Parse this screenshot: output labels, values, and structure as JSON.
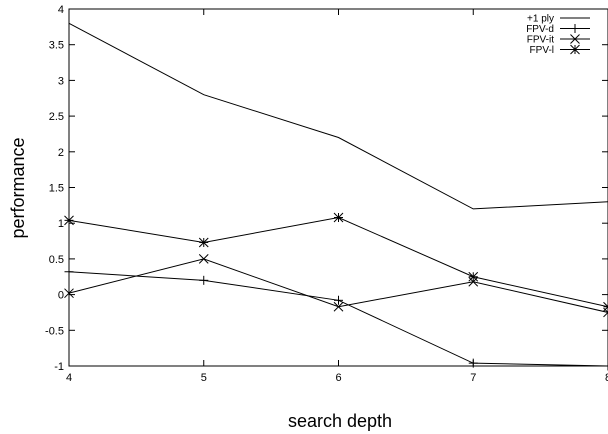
{
  "chart_data": {
    "type": "line",
    "xlabel": "search depth",
    "ylabel": "performance",
    "xlim": [
      4,
      8
    ],
    "ylim": [
      -1,
      4
    ],
    "x_ticks": [
      "4",
      "5",
      "6",
      "7",
      "8"
    ],
    "y_ticks": [
      "-1",
      "-0.5",
      "0",
      "0.5",
      "1",
      "1.5",
      "2",
      "2.5",
      "3",
      "3.5",
      "4"
    ],
    "grid": false,
    "legend_position": "top-right",
    "x": [
      4,
      5,
      6,
      7,
      8
    ],
    "series": [
      {
        "name": "+1 ply",
        "marker": "none",
        "values": [
          3.8,
          2.8,
          2.2,
          1.2,
          1.3
        ]
      },
      {
        "name": "FPV-d",
        "marker": "plus",
        "values": [
          0.32,
          0.2,
          -0.08,
          -0.96,
          -1.0
        ]
      },
      {
        "name": "FPV-it",
        "marker": "cross",
        "values": [
          0.02,
          0.5,
          -0.17,
          0.18,
          -0.25
        ]
      },
      {
        "name": "FPV-l",
        "marker": "star",
        "values": [
          1.04,
          0.73,
          1.08,
          0.25,
          -0.17
        ]
      }
    ],
    "color": "#000000"
  }
}
